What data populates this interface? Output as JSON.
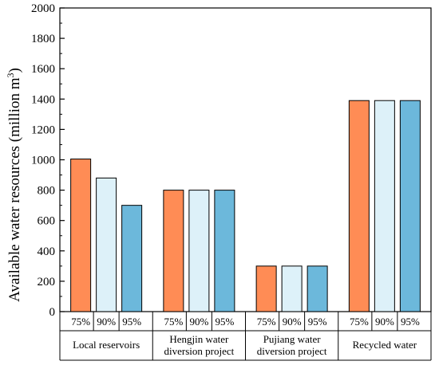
{
  "chart_data": {
    "type": "bar",
    "ylabel": "Available water resources (million m",
    "ylabel_sup": "3",
    "ylabel_close": ")",
    "ylim": [
      0,
      2000
    ],
    "yticks": [
      "0",
      "200",
      "400",
      "600",
      "800",
      "1000",
      "1200",
      "1400",
      "1600",
      "1800",
      "2000"
    ],
    "grid": false,
    "categories": [
      {
        "line1": "Local reservoirs",
        "line2": ""
      },
      {
        "line1": "Hengjin water",
        "line2": "diversion project"
      },
      {
        "line1": "Pujiang water",
        "line2": "diversion project"
      },
      {
        "line1": "Recycled water",
        "line2": ""
      }
    ],
    "series": [
      {
        "name": "75%",
        "color": "#FF8C55",
        "values": [
          1005,
          800,
          300,
          1390
        ]
      },
      {
        "name": "90%",
        "color": "#DDF1F9",
        "values": [
          880,
          800,
          300,
          1390
        ]
      },
      {
        "name": "95%",
        "color": "#6CB8DB",
        "values": [
          700,
          800,
          300,
          1390
        ]
      }
    ]
  }
}
